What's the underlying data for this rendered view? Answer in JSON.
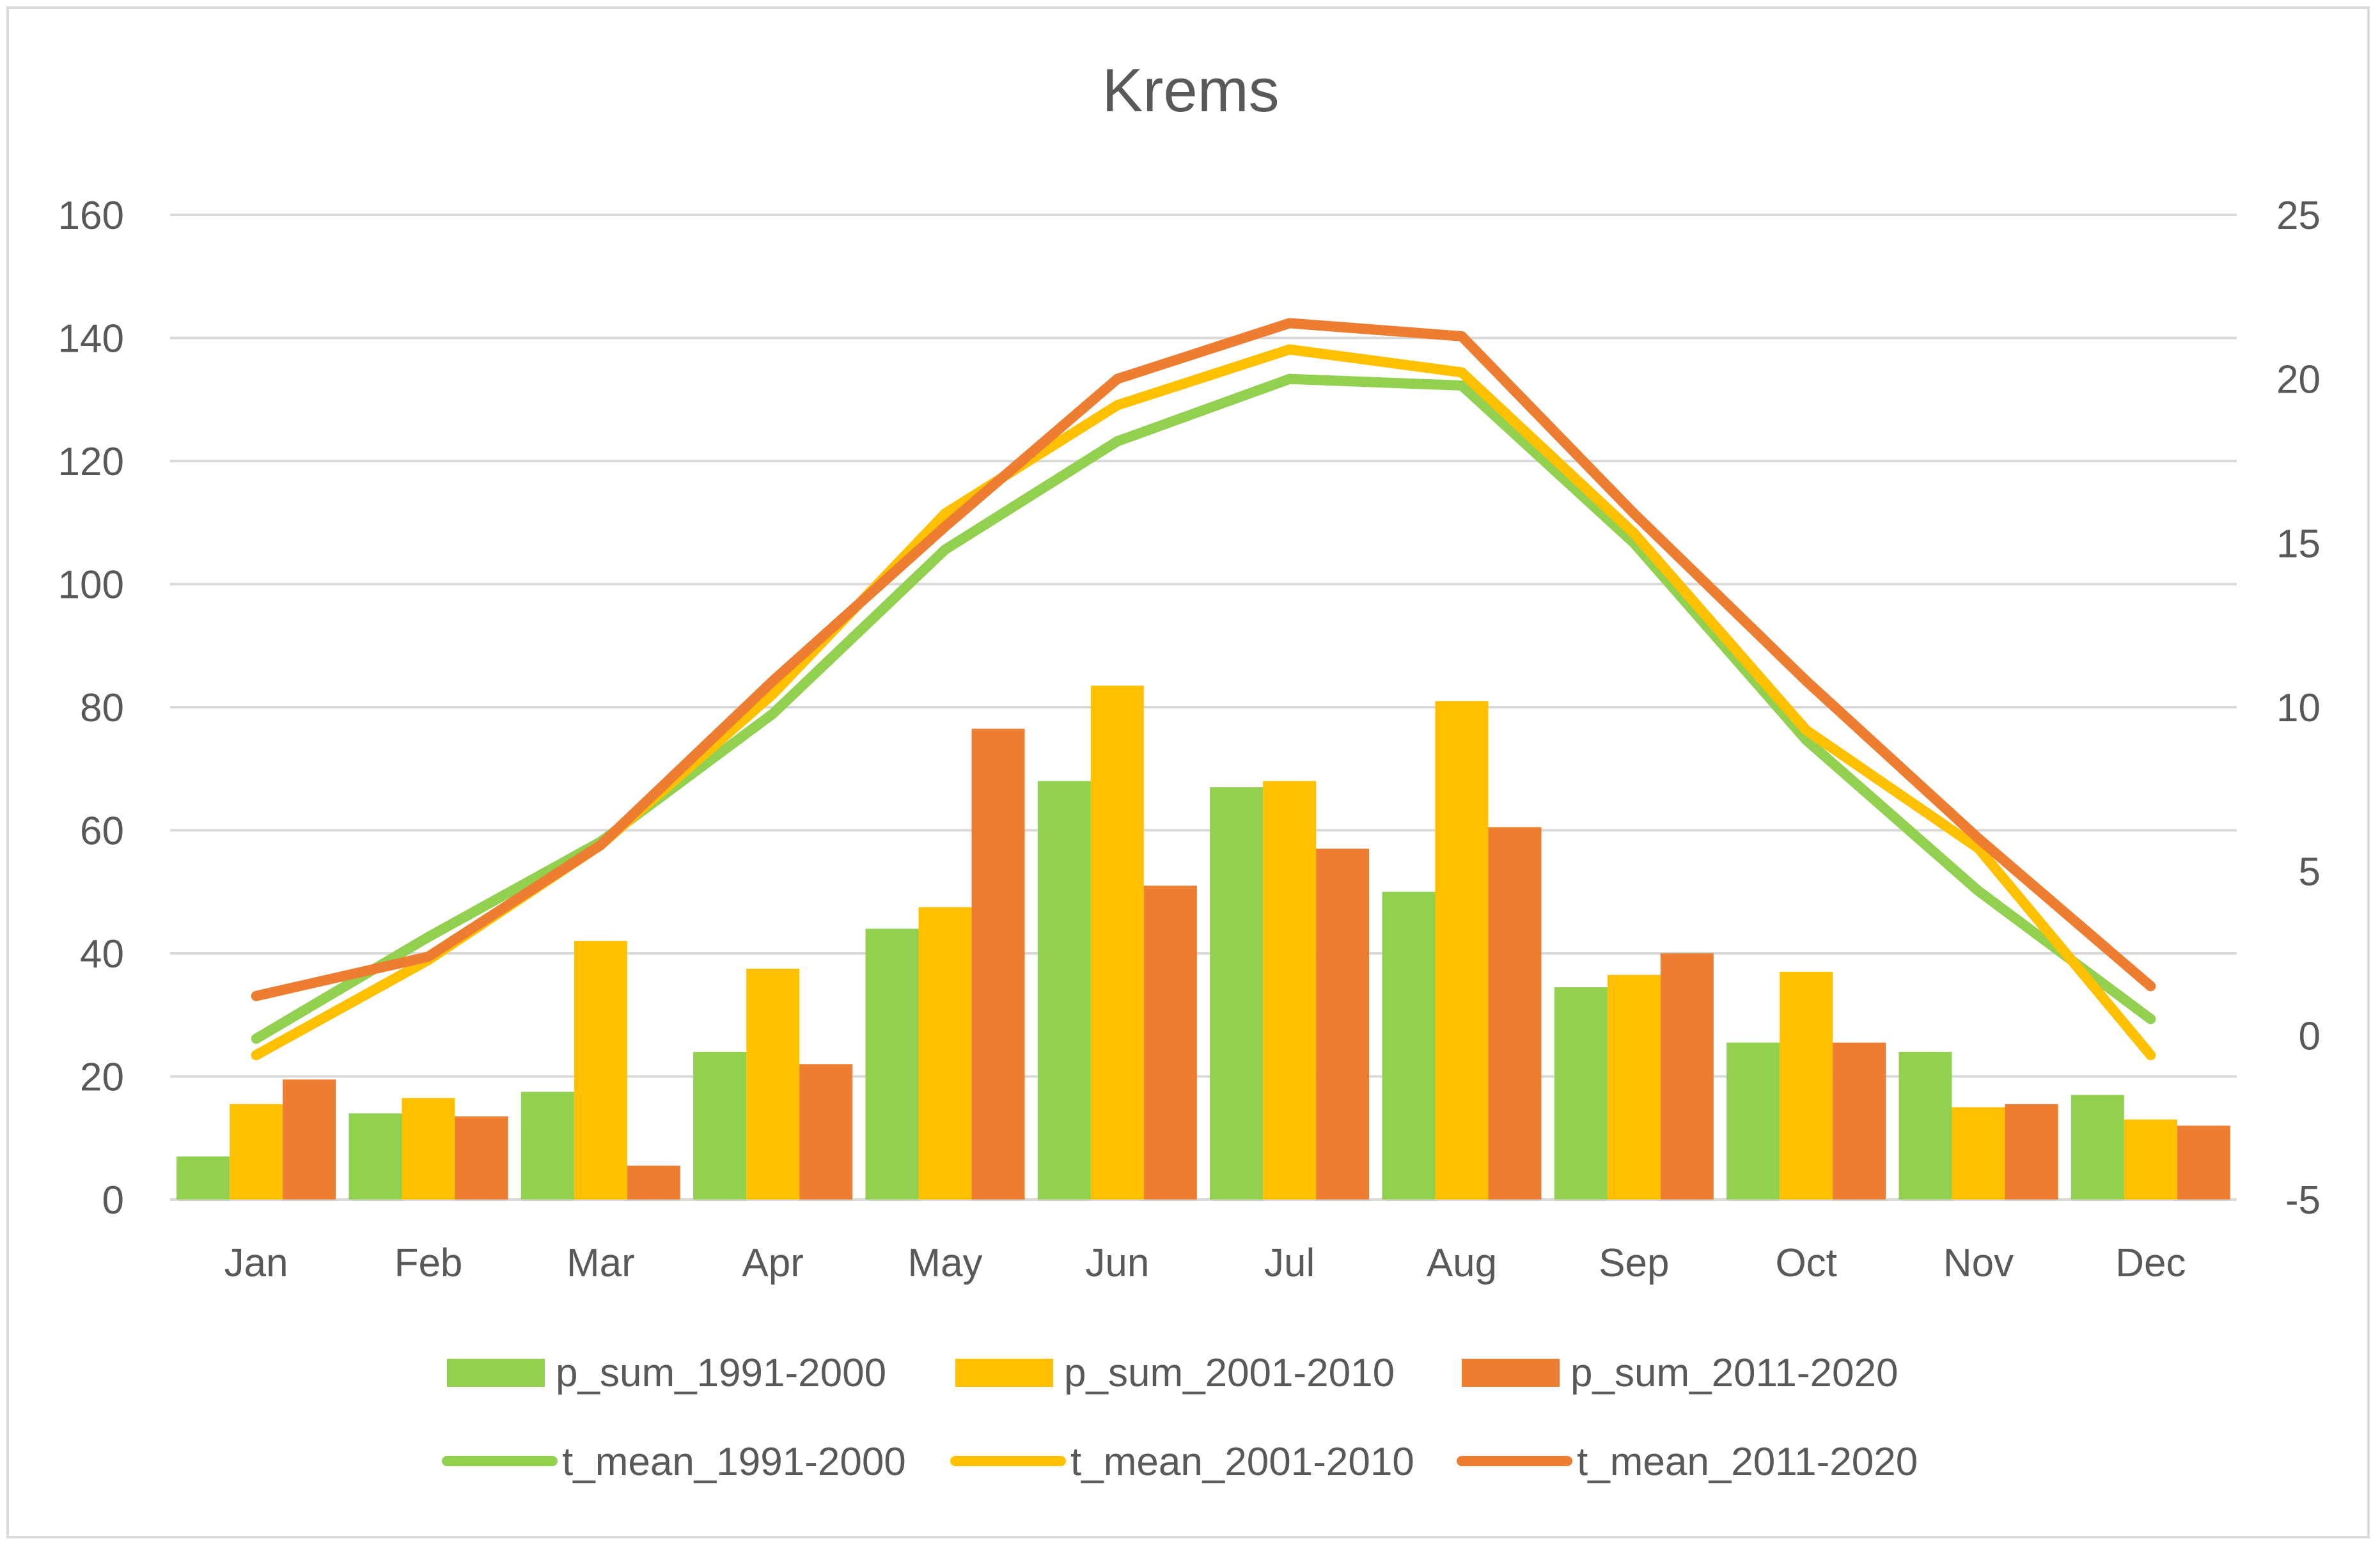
{
  "chart_data": {
    "type": "bar+line",
    "title": "Krems",
    "categories": [
      "Jan",
      "Feb",
      "Mar",
      "Apr",
      "May",
      "Jun",
      "Jul",
      "Aug",
      "Sep",
      "Oct",
      "Nov",
      "Dec"
    ],
    "y_left": {
      "min": 0,
      "max": 160,
      "step": 20,
      "ticks": [
        "0",
        "20",
        "40",
        "60",
        "80",
        "100",
        "120",
        "140",
        "160"
      ]
    },
    "y_right": {
      "min": -5,
      "max": 25,
      "step": 5,
      "ticks": [
        "-5",
        "0",
        "5",
        "10",
        "15",
        "20",
        "25"
      ]
    },
    "grid": true,
    "legend_position": "bottom",
    "bar_series": [
      {
        "name": "p_sum_1991-2000",
        "color": "#92d050",
        "values": [
          7,
          14,
          17.5,
          24,
          44,
          68,
          67,
          50,
          34.5,
          25.5,
          24,
          17
        ]
      },
      {
        "name": "p_sum_2001-2010",
        "color": "#ffc000",
        "values": [
          15.5,
          16.5,
          42,
          37.5,
          47.5,
          83.5,
          68,
          81,
          36.5,
          37,
          15,
          13
        ]
      },
      {
        "name": "p_sum_2011-2020",
        "color": "#ed7d31",
        "values": [
          19.5,
          13.5,
          5.5,
          22,
          76.5,
          51,
          57,
          60.5,
          40,
          25.5,
          15.5,
          12
        ]
      }
    ],
    "line_series": [
      {
        "name": "t_mean_1991-2000",
        "color": "#92d050",
        "values": [
          -0.1,
          3.0,
          5.9,
          9.8,
          14.8,
          18.1,
          20.0,
          19.8,
          15.0,
          9.0,
          4.4,
          0.5
        ]
      },
      {
        "name": "t_mean_2001-2010",
        "color": "#ffc000",
        "values": [
          -0.6,
          2.3,
          5.8,
          10.4,
          15.9,
          19.2,
          20.9,
          20.2,
          15.3,
          9.3,
          5.7,
          -0.6
        ]
      },
      {
        "name": "t_mean_2011-2020",
        "color": "#ed7d31",
        "values": [
          1.2,
          2.4,
          5.8,
          10.8,
          15.5,
          20.0,
          21.7,
          21.3,
          15.9,
          10.8,
          6.0,
          1.5
        ]
      }
    ]
  }
}
